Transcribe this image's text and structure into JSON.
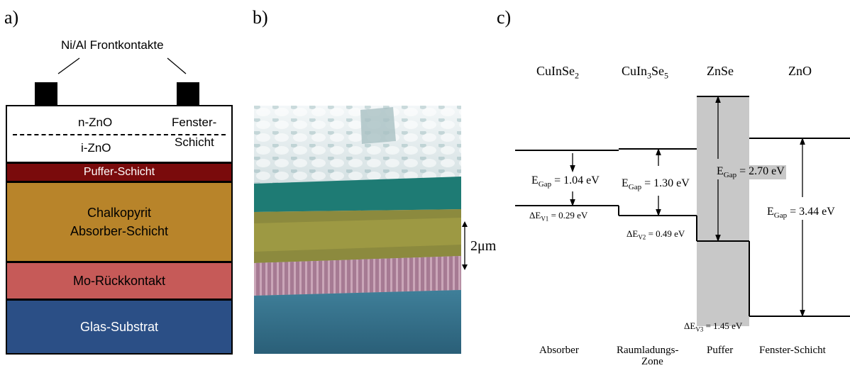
{
  "panel_a": {
    "label": "a)",
    "contacts_label": "Ni/Al Frontkontakte",
    "n_zno": "n-ZnO",
    "i_zno": "i-ZnO",
    "fenster_line1": "Fenster-",
    "fenster_line2": "Schicht",
    "puffer": "Puffer-Schicht",
    "absorber_line1": "Chalkopyrit",
    "absorber_line2": "Absorber-Schicht",
    "mo": "Mo-Rückkontakt",
    "glas": "Glas-Substrat",
    "colors": {
      "puffer": "#7a0b0c",
      "absorber": "#b8842a",
      "mo": "#c65a58",
      "glas": "#2b4f86"
    }
  },
  "panel_b": {
    "label": "b)",
    "scale_label": "2μm"
  },
  "panel_c": {
    "label": "c)",
    "materials": [
      {
        "base": "CuInSe",
        "sub": "2",
        "rest": ""
      },
      {
        "base": "CuIn",
        "sub": "3",
        "rest": "Se",
        "sub2": "5"
      },
      {
        "base": "ZnSe",
        "sub": "",
        "rest": ""
      },
      {
        "base": "ZnO",
        "sub": "",
        "rest": ""
      }
    ],
    "gaps": [
      {
        "prefix": "E",
        "sub": "Gap",
        "value": " = 1.04 eV"
      },
      {
        "prefix": "E",
        "sub": "Gap",
        "value": " = 1.30 eV"
      },
      {
        "prefix": "E",
        "sub": "Gap",
        "value": " = 2.70 eV"
      },
      {
        "prefix": "E",
        "sub": "Gap",
        "value": " = 3.44 eV"
      }
    ],
    "offsets": [
      {
        "prefix": "ΔE",
        "sub": "V1",
        "value": " = 0.29 eV"
      },
      {
        "prefix": "ΔE",
        "sub": "V2",
        "value": " = 0.49 eV"
      },
      {
        "prefix": "ΔE",
        "sub": "V3",
        "value": " = 1.45 eV"
      }
    ],
    "regions": [
      "Absorber",
      "Raumladungs-",
      "Zone",
      "Puffer",
      "Fenster-Schicht"
    ]
  }
}
